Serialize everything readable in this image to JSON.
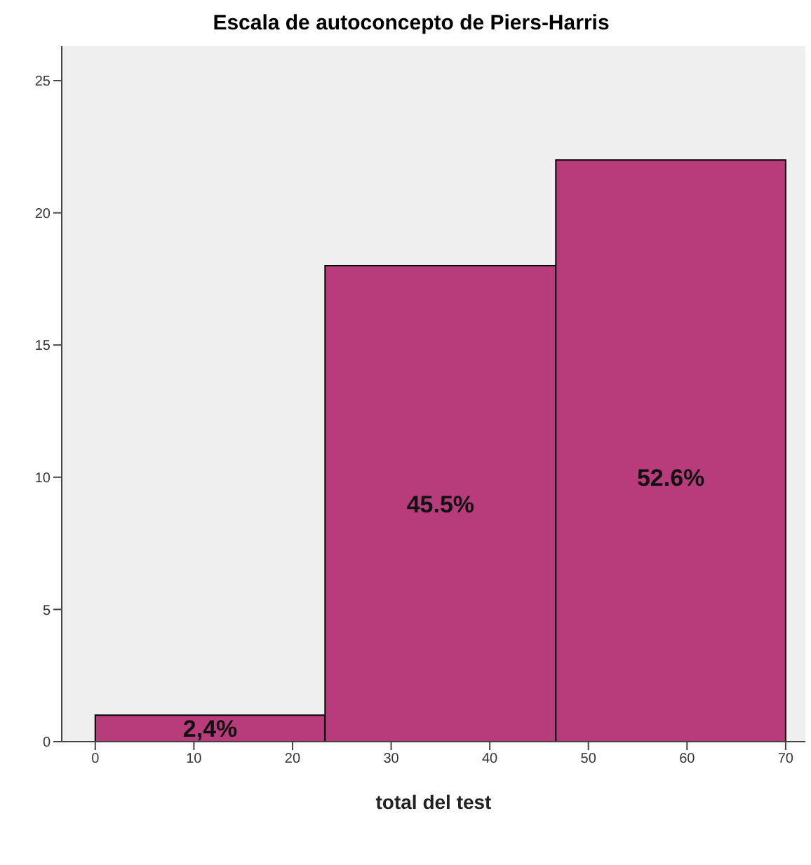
{
  "chart_data": {
    "type": "histogram",
    "title": "Escala de autoconcepto de Piers-Harris",
    "xlabel": "total del test",
    "bins": [
      0,
      23.3,
      46.7,
      70
    ],
    "values": [
      1,
      18,
      22
    ],
    "color": "#b83c7c",
    "annotations": [
      "2,4%",
      "45.5%",
      "52.6%"
    ],
    "xlim": [
      -3.4,
      72
    ],
    "xticks": [
      0,
      10,
      20,
      30,
      40,
      50,
      60,
      70
    ],
    "ylim": [
      0,
      26.3
    ],
    "yticks": [
      0,
      5,
      10,
      15,
      20,
      25
    ]
  }
}
